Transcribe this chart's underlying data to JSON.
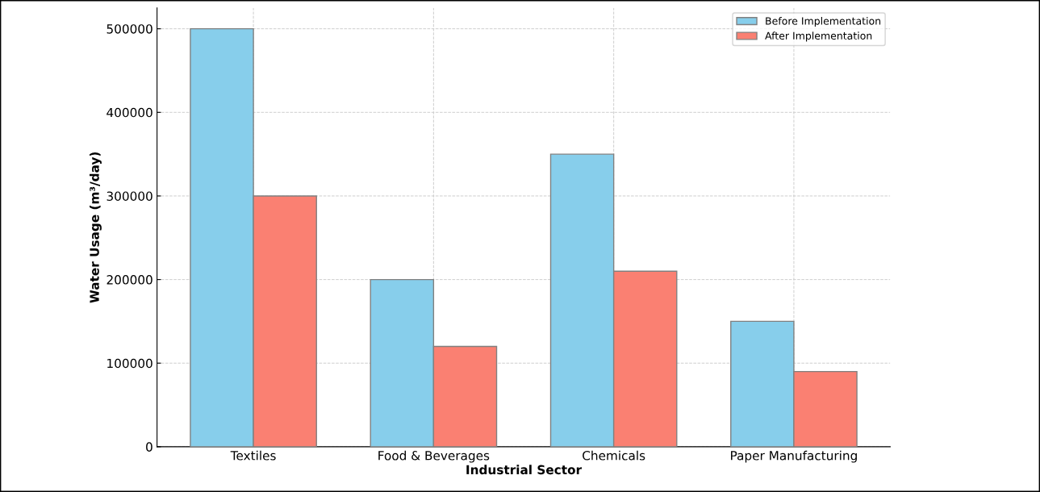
{
  "chart_data": {
    "type": "bar",
    "xlabel": "Industrial Sector",
    "ylabel": "Water Usage (m³/day)",
    "categories": [
      "Textiles",
      "Food & Beverages",
      "Chemicals",
      "Paper Manufacturing"
    ],
    "series": [
      {
        "name": "Before Implementation",
        "color": "#87ceeb",
        "values": [
          500000,
          200000,
          350000,
          150000
        ]
      },
      {
        "name": "After Implementation",
        "color": "#fa8072",
        "values": [
          300000,
          120000,
          210000,
          90000
        ]
      }
    ],
    "ylim": [
      0,
      525000
    ],
    "yticks": [
      0,
      100000,
      200000,
      300000,
      400000,
      500000
    ],
    "grid": true,
    "legend": "top right"
  }
}
